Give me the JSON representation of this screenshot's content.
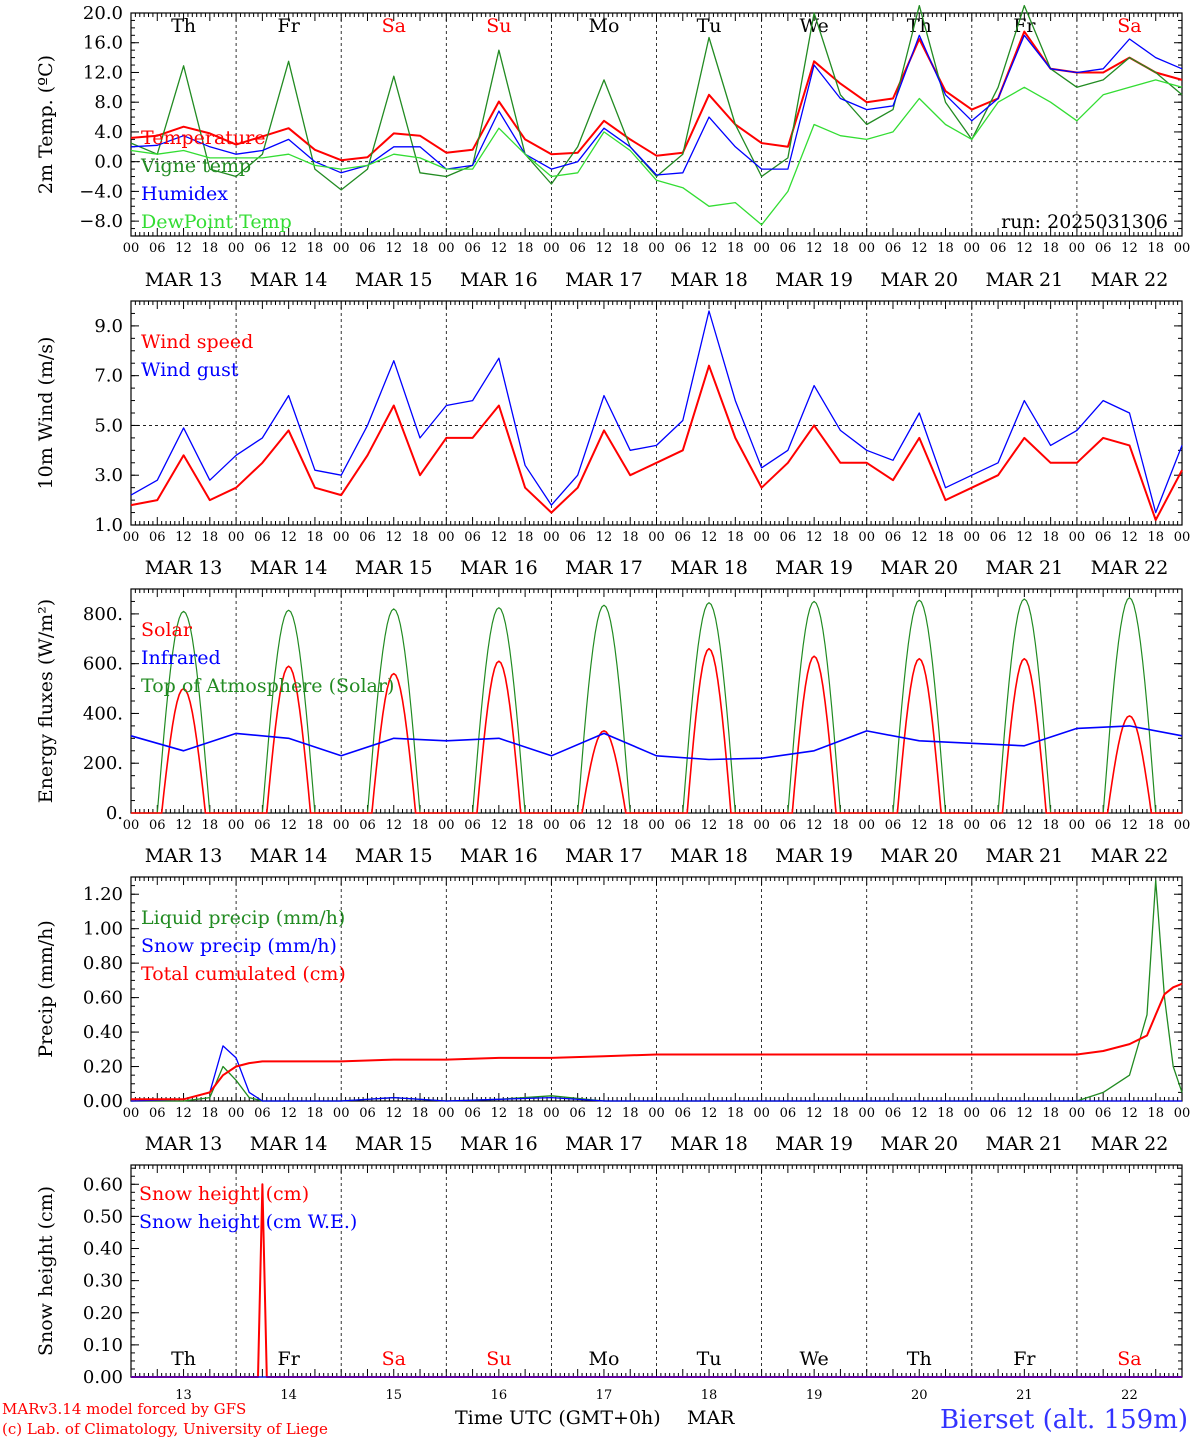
{
  "hour_labels": [
    "00",
    "06",
    "12",
    "18"
  ],
  "date_labels": [
    "MAR 13",
    "MAR 14",
    "MAR 15",
    "MAR 16",
    "MAR 17",
    "MAR 18",
    "MAR 19",
    "MAR 20",
    "MAR 21",
    "MAR 22"
  ],
  "day_labels": [
    "Th",
    "Fr",
    "Sa",
    "Su",
    "Mo",
    "Tu",
    "We",
    "Th",
    "Fr",
    "Sa"
  ],
  "day_colors": [
    "#000000",
    "#000000",
    "#ff0000",
    "#ff0000",
    "#000000",
    "#000000",
    "#000000",
    "#000000",
    "#000000",
    "#ff0000"
  ],
  "bottom_day_numbers": [
    "13",
    "14",
    "15",
    "16",
    "17",
    "18",
    "19",
    "20",
    "21",
    "22"
  ],
  "run_label": "run: 2025031306",
  "footer": {
    "model": "MARv3.14 model forced by GFS",
    "lab": "(c) Lab. of Climatology, University of Liege",
    "xaxis": "Time UTC (GMT+0h)",
    "month": "MAR",
    "station": "Bierset (alt. 159m)"
  },
  "colors": {
    "red": "#ff0000",
    "green": "#228b22",
    "blue": "#0000ff",
    "lightgreen": "#33dd33"
  },
  "chart_data": [
    {
      "type": "line",
      "ylabel": "2m Temp. (ºC)",
      "ylim": [
        -10,
        20
      ],
      "yticks": [
        "20.0",
        "16.0",
        "12.0",
        "8.0",
        "4.0",
        "0.0",
        "−4.0",
        "−8.0"
      ],
      "ytick_values": [
        20,
        16,
        12,
        8,
        4,
        0,
        -4,
        -8
      ],
      "hline": 0,
      "x_hours": [
        0,
        6,
        12,
        18,
        24,
        30,
        36,
        42,
        48,
        54,
        60,
        66,
        72,
        78,
        84,
        90,
        96,
        102,
        108,
        114,
        120,
        126,
        132,
        138,
        144,
        150,
        156,
        162,
        168,
        174,
        180,
        186,
        192,
        198,
        204,
        210,
        216,
        222,
        228,
        234,
        240
      ],
      "series": [
        {
          "name": "Temperature",
          "color": "red",
          "values": [
            3.2,
            3.5,
            4.7,
            3.8,
            2.3,
            3.4,
            4.5,
            1.6,
            0.2,
            0.6,
            3.8,
            3.5,
            1.2,
            1.6,
            8.1,
            3.0,
            1.0,
            1.2,
            5.5,
            3.0,
            0.8,
            1.2,
            9.0,
            5.0,
            2.5,
            2.0,
            13.5,
            10.5,
            8.0,
            8.5,
            16.5,
            9.5,
            7.0,
            8.5,
            17.5,
            12.5,
            12.0,
            12.0,
            14.0,
            12.0,
            11.0
          ]
        },
        {
          "name": "Vigne temp",
          "color": "green",
          "values": [
            2.5,
            1.0,
            12.9,
            -1.0,
            -2.0,
            1.0,
            13.5,
            -1.0,
            -3.8,
            -1.0,
            11.5,
            -1.5,
            -2.0,
            -0.5,
            15.0,
            1.0,
            -3.0,
            2.0,
            11.0,
            2.0,
            -2.0,
            1.0,
            16.7,
            5.0,
            -2.0,
            0.5,
            20.0,
            9.0,
            5.0,
            7.0,
            21.0,
            8.0,
            3.0,
            10.0,
            21.0,
            12.5,
            10.0,
            11.0,
            14.0,
            12.0,
            9.0
          ]
        },
        {
          "name": "Humidex",
          "color": "blue",
          "values": [
            2.0,
            2.2,
            3.5,
            2.0,
            1.0,
            1.5,
            3.0,
            0.0,
            -1.5,
            -0.5,
            2.0,
            2.0,
            -1.0,
            -0.5,
            6.8,
            1.0,
            -1.0,
            0.0,
            4.5,
            2.0,
            -1.8,
            -1.5,
            6.0,
            2.0,
            -1.0,
            -1.0,
            13.0,
            8.5,
            7.0,
            7.5,
            17.0,
            9.0,
            5.5,
            8.5,
            17.0,
            12.5,
            12.0,
            12.5,
            16.5,
            14.0,
            12.5
          ]
        },
        {
          "name": "DewPoint Temp",
          "color": "lightgreen",
          "values": [
            1.5,
            1.0,
            1.5,
            0.5,
            0.5,
            0.5,
            1.0,
            -0.5,
            -1.0,
            -0.5,
            1.0,
            0.5,
            -1.0,
            -1.0,
            4.5,
            1.0,
            -2.0,
            -1.5,
            4.0,
            1.5,
            -2.5,
            -3.5,
            -6.0,
            -5.5,
            -8.5,
            -4.0,
            5.0,
            3.5,
            3.0,
            4.0,
            8.5,
            5.0,
            3.0,
            8.0,
            10.0,
            8.0,
            5.5,
            9.0,
            10.0,
            11.0,
            10.0
          ]
        }
      ]
    },
    {
      "type": "line",
      "ylabel": "10m Wind (m/s)",
      "ylim": [
        1,
        10
      ],
      "yticks": [
        "9.0",
        "7.0",
        "5.0",
        "3.0",
        "1.0"
      ],
      "ytick_values": [
        9,
        7,
        5,
        3,
        1
      ],
      "hline": 5,
      "x_hours": [
        0,
        6,
        12,
        18,
        24,
        30,
        36,
        42,
        48,
        54,
        60,
        66,
        72,
        78,
        84,
        90,
        96,
        102,
        108,
        114,
        120,
        126,
        132,
        138,
        144,
        150,
        156,
        162,
        168,
        174,
        180,
        186,
        192,
        198,
        204,
        210,
        216,
        222,
        228,
        234,
        240
      ],
      "series": [
        {
          "name": "Wind speed",
          "color": "red",
          "values": [
            1.8,
            2.0,
            3.8,
            2.0,
            2.5,
            3.5,
            4.8,
            2.5,
            2.2,
            3.8,
            5.8,
            3.0,
            4.5,
            4.5,
            5.8,
            2.5,
            1.5,
            2.5,
            4.8,
            3.0,
            3.5,
            4.0,
            7.4,
            4.5,
            2.5,
            3.5,
            5.0,
            3.5,
            3.5,
            2.8,
            4.5,
            2.0,
            2.5,
            3.0,
            4.5,
            3.5,
            3.5,
            4.5,
            4.2,
            1.2,
            3.2
          ]
        },
        {
          "name": "Wind gust",
          "color": "blue",
          "values": [
            2.2,
            2.8,
            4.9,
            2.8,
            3.8,
            4.5,
            6.2,
            3.2,
            3.0,
            5.0,
            7.6,
            4.5,
            5.8,
            6.0,
            7.7,
            3.4,
            1.8,
            3.0,
            6.2,
            4.0,
            4.2,
            5.2,
            9.6,
            6.0,
            3.3,
            4.0,
            6.6,
            4.8,
            4.0,
            3.6,
            5.5,
            2.5,
            3.0,
            3.5,
            6.0,
            4.2,
            4.8,
            6.0,
            5.5,
            1.5,
            4.2
          ]
        }
      ]
    },
    {
      "type": "line",
      "ylabel": "Energy fluxes (W/m²)",
      "ylim": [
        0,
        900
      ],
      "yticks": [
        "800.",
        "600.",
        "400.",
        "200.",
        "0."
      ],
      "ytick_values": [
        800,
        600,
        400,
        200,
        0
      ],
      "legend": [
        "Solar",
        "Infrared",
        "Top of Atmosphere (Solar)"
      ],
      "legend_colors": [
        "red",
        "blue",
        "green"
      ],
      "solar_peaks": [
        500,
        590,
        560,
        610,
        330,
        660,
        630,
        620,
        620,
        390
      ],
      "toa_peaks": [
        810,
        815,
        820,
        825,
        835,
        845,
        850,
        855,
        860,
        865
      ],
      "infrared": {
        "x_hours": [
          0,
          12,
          24,
          36,
          48,
          60,
          72,
          84,
          96,
          108,
          120,
          132,
          144,
          156,
          168,
          180,
          192,
          204,
          216,
          228,
          240
        ],
        "values": [
          310,
          250,
          320,
          300,
          230,
          300,
          290,
          300,
          230,
          320,
          230,
          215,
          220,
          250,
          330,
          290,
          280,
          270,
          340,
          350,
          310
        ]
      }
    },
    {
      "type": "line",
      "ylabel": "Precip (mm/h)",
      "ylim": [
        0,
        1.3
      ],
      "yticks": [
        "1.20",
        "1.00",
        "0.80",
        "0.60",
        "0.40",
        "0.20",
        "0.00"
      ],
      "ytick_values": [
        1.2,
        1.0,
        0.8,
        0.6,
        0.4,
        0.2,
        0.0
      ],
      "x_hours": [
        0,
        12,
        18,
        21,
        24,
        27,
        30,
        36,
        48,
        60,
        72,
        84,
        96,
        108,
        120,
        144,
        168,
        192,
        216,
        222,
        228,
        232,
        234,
        236,
        238,
        240
      ],
      "series": [
        {
          "name": "Liquid precip (mm/h)",
          "color": "green",
          "values": [
            0,
            0,
            0.02,
            0.2,
            0.12,
            0.02,
            0,
            0,
            0,
            0.02,
            0,
            0.01,
            0.03,
            0,
            0,
            0,
            0,
            0,
            0,
            0.05,
            0.15,
            0.5,
            1.28,
            0.6,
            0.2,
            0.05
          ]
        },
        {
          "name": "Snow precip (mm/h)",
          "color": "blue",
          "values": [
            0,
            0.01,
            0.05,
            0.32,
            0.25,
            0.05,
            0,
            0,
            0,
            0.02,
            0,
            0.01,
            0.02,
            0,
            0,
            0,
            0,
            0,
            0,
            0,
            0,
            0,
            0,
            0,
            0,
            0
          ]
        },
        {
          "name": "Total cumulated (cm)",
          "color": "red",
          "values": [
            0.01,
            0.01,
            0.05,
            0.15,
            0.2,
            0.22,
            0.23,
            0.23,
            0.23,
            0.24,
            0.24,
            0.25,
            0.25,
            0.26,
            0.27,
            0.27,
            0.27,
            0.27,
            0.27,
            0.29,
            0.33,
            0.38,
            0.5,
            0.62,
            0.66,
            0.68
          ]
        }
      ]
    },
    {
      "type": "line",
      "ylabel": "Snow height (cm)",
      "ylim": [
        0,
        0.66
      ],
      "yticks": [
        "0.60",
        "0.50",
        "0.40",
        "0.30",
        "0.20",
        "0.10",
        "0.00"
      ],
      "ytick_values": [
        0.6,
        0.5,
        0.4,
        0.3,
        0.2,
        0.1,
        0.0
      ],
      "x_hours": [
        0,
        28,
        29,
        30,
        31,
        32,
        240
      ],
      "series": [
        {
          "name": "Snow height (cm)",
          "color": "red",
          "values": [
            0,
            0,
            0,
            0.6,
            0,
            0,
            0
          ]
        },
        {
          "name": "Snow height (cm W.E.)",
          "color": "blue",
          "values": [
            0,
            0,
            0,
            0,
            0,
            0,
            0
          ]
        }
      ]
    }
  ]
}
